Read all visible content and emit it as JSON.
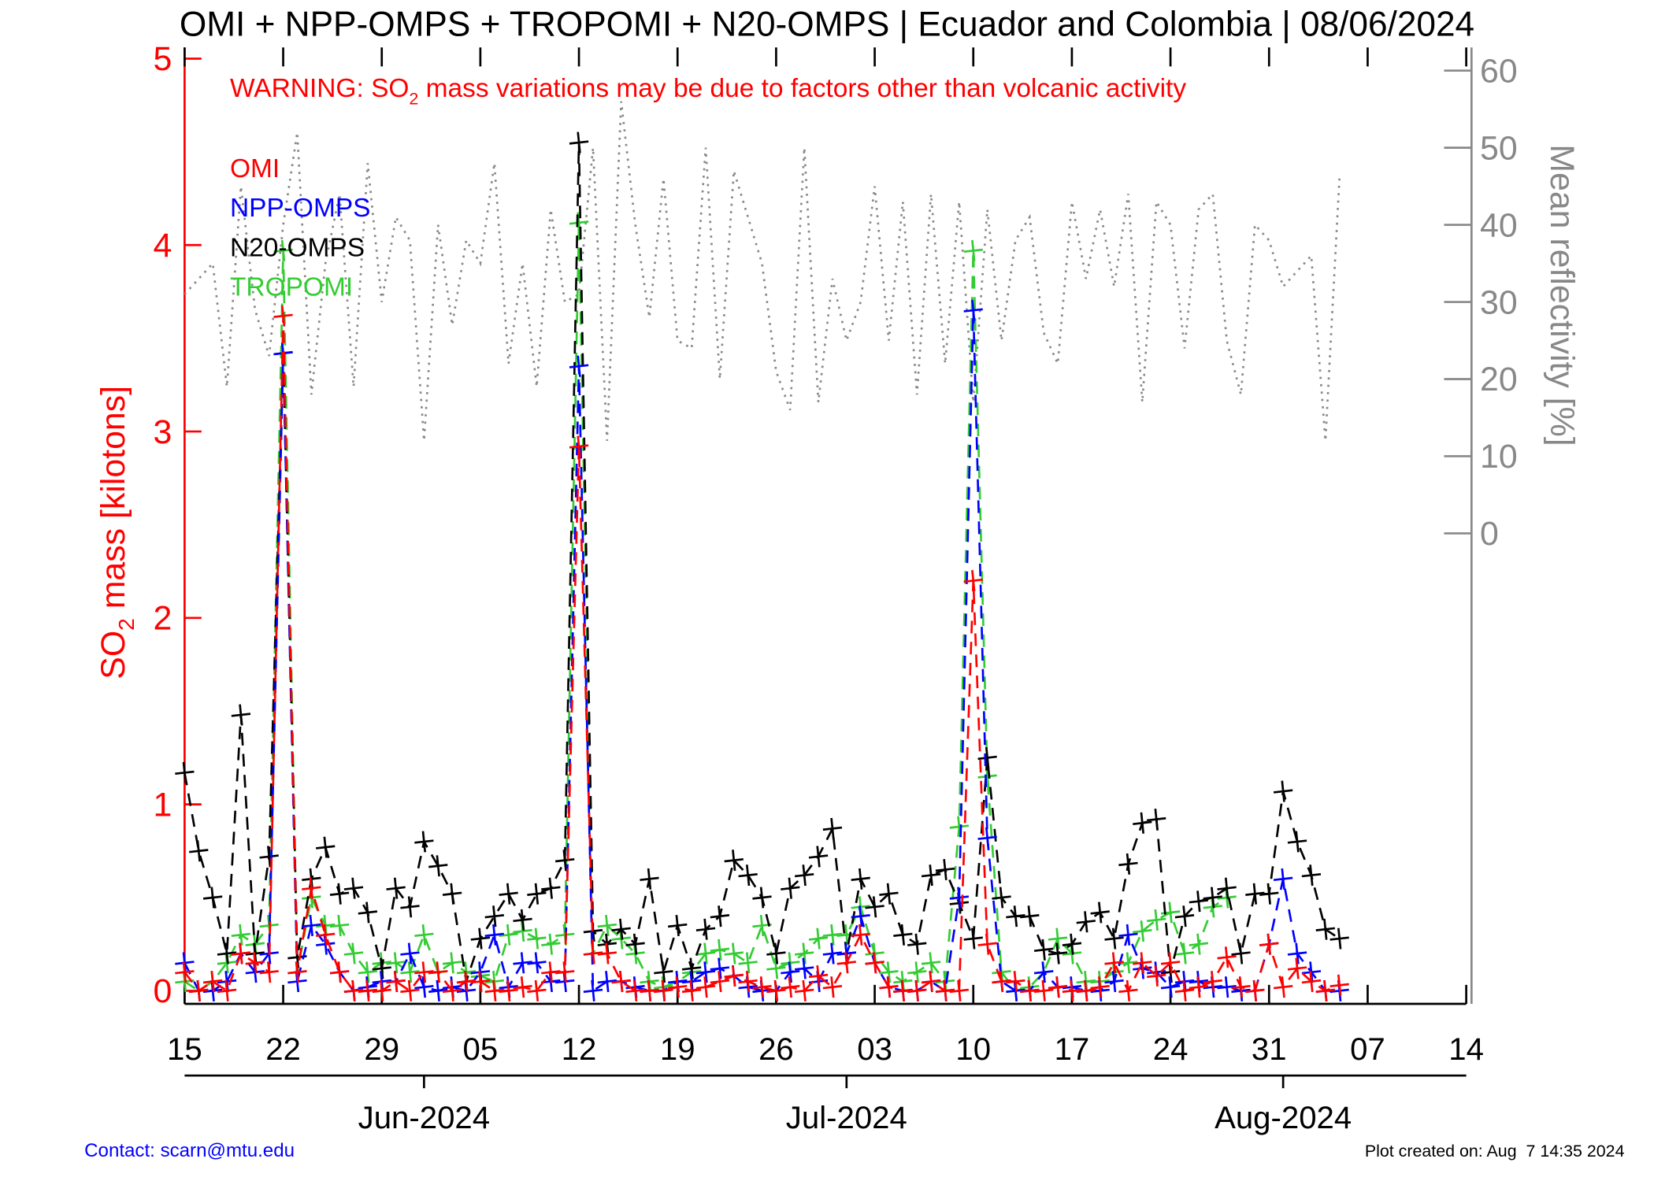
{
  "chart_data": {
    "type": "line",
    "title": "OMI + NPP-OMPS + TROPOMI + N20-OMPS | Ecuador and Colombia | 08/06/2024",
    "warning": {
      "prefix": "WARNING: SO",
      "sub": "2",
      "suffix": " mass variations may be due to factors other than volcanic activity"
    },
    "ylabel": {
      "prefix": "SO",
      "sub": "2",
      "suffix": " mass [kilotons]"
    },
    "y2label": "Mean reflectivity [%]",
    "x": [
      "2024-05-15",
      "2024-05-16",
      "2024-05-17",
      "2024-05-18",
      "2024-05-19",
      "2024-05-20",
      "2024-05-21",
      "2024-05-22",
      "2024-05-23",
      "2024-05-24",
      "2024-05-25",
      "2024-05-26",
      "2024-05-27",
      "2024-05-28",
      "2024-05-29",
      "2024-05-30",
      "2024-05-31",
      "2024-06-01",
      "2024-06-02",
      "2024-06-03",
      "2024-06-04",
      "2024-06-05",
      "2024-06-06",
      "2024-06-07",
      "2024-06-08",
      "2024-06-09",
      "2024-06-10",
      "2024-06-11",
      "2024-06-12",
      "2024-06-13",
      "2024-06-14",
      "2024-06-15",
      "2024-06-16",
      "2024-06-17",
      "2024-06-18",
      "2024-06-19",
      "2024-06-20",
      "2024-06-21",
      "2024-06-22",
      "2024-06-23",
      "2024-06-24",
      "2024-06-25",
      "2024-06-26",
      "2024-06-27",
      "2024-06-28",
      "2024-06-29",
      "2024-06-30",
      "2024-07-01",
      "2024-07-02",
      "2024-07-03",
      "2024-07-04",
      "2024-07-05",
      "2024-07-06",
      "2024-07-07",
      "2024-07-08",
      "2024-07-09",
      "2024-07-10",
      "2024-07-11",
      "2024-07-12",
      "2024-07-13",
      "2024-07-14",
      "2024-07-15",
      "2024-07-16",
      "2024-07-17",
      "2024-07-18",
      "2024-07-19",
      "2024-07-20",
      "2024-07-21",
      "2024-07-22",
      "2024-07-23",
      "2024-07-24",
      "2024-07-25",
      "2024-07-26",
      "2024-07-27",
      "2024-07-28",
      "2024-07-29",
      "2024-07-30",
      "2024-07-31",
      "2024-08-01",
      "2024-08-02",
      "2024-08-03",
      "2024-08-04",
      "2024-08-05"
    ],
    "series": [
      {
        "name": "OMI",
        "color": "#ff0000",
        "values": [
          0.1,
          0.0,
          0.05,
          0.0,
          0.2,
          0.15,
          0.1,
          3.62,
          0.1,
          0.55,
          0.3,
          0.1,
          0.0,
          0.0,
          0.0,
          0.05,
          0.0,
          0.1,
          0.1,
          0.0,
          0.05,
          0.05,
          0.0,
          0.0,
          0.02,
          0.0,
          0.1,
          0.1,
          2.92,
          0.2,
          0.2,
          0.05,
          0.0,
          0.0,
          0.0,
          0.02,
          0.0,
          0.02,
          0.05,
          0.08,
          0.05,
          0.02,
          0.0,
          0.02,
          0.0,
          0.08,
          0.02,
          0.15,
          0.3,
          0.15,
          0.02,
          0.0,
          0.0,
          0.05,
          0.0,
          0.0,
          2.2,
          0.25,
          0.05,
          0.05,
          0.0,
          0.0,
          0.02,
          0.0,
          0.0,
          0.02,
          0.15,
          0.0,
          0.15,
          0.08,
          0.15,
          0.0,
          0.02,
          0.05,
          0.18,
          0.02,
          0.0,
          0.25,
          0.02,
          0.12,
          0.05,
          0.0,
          0.03
        ]
      },
      {
        "name": "NPP-OMPS",
        "color": "#0000ff",
        "values": [
          0.15,
          0.0,
          0.0,
          0.05,
          0.2,
          0.1,
          0.2,
          3.42,
          0.05,
          0.35,
          0.25,
          0.1,
          0.0,
          0.02,
          0.05,
          0.05,
          0.2,
          0.02,
          0.0,
          0.02,
          0.0,
          0.1,
          0.3,
          0.02,
          0.15,
          0.15,
          0.05,
          0.05,
          3.35,
          0.0,
          0.05,
          0.05,
          0.02,
          0.0,
          0.0,
          0.05,
          0.05,
          0.1,
          0.12,
          0.08,
          0.02,
          0.0,
          0.0,
          0.1,
          0.12,
          0.05,
          0.2,
          0.2,
          0.4,
          0.15,
          0.02,
          0.0,
          0.0,
          0.05,
          0.0,
          0.5,
          3.65,
          0.82,
          0.05,
          0.0,
          0.0,
          0.1,
          0.02,
          0.02,
          0.0,
          0.0,
          0.05,
          0.3,
          0.12,
          0.1,
          0.02,
          0.05,
          0.05,
          0.02,
          0.02,
          0.0,
          0.0,
          0.25,
          0.6,
          0.2,
          0.1,
          0.0,
          0.0
        ]
      },
      {
        "name": "N20-OMPS",
        "color": "#000000",
        "values": [
          1.17,
          0.75,
          0.5,
          0.2,
          1.48,
          0.2,
          0.72,
          3.42,
          0.18,
          0.6,
          0.77,
          0.52,
          0.55,
          0.42,
          0.12,
          0.55,
          0.45,
          0.8,
          0.67,
          0.52,
          0.05,
          0.28,
          0.4,
          0.52,
          0.38,
          0.52,
          0.55,
          0.7,
          4.55,
          0.32,
          0.25,
          0.33,
          0.25,
          0.6,
          0.1,
          0.35,
          0.12,
          0.33,
          0.4,
          0.7,
          0.62,
          0.5,
          0.2,
          0.55,
          0.62,
          0.72,
          0.87,
          0.2,
          0.6,
          0.45,
          0.52,
          0.3,
          0.25,
          0.62,
          0.65,
          0.47,
          0.28,
          1.25,
          0.5,
          0.4,
          0.4,
          0.22,
          0.2,
          0.25,
          0.37,
          0.42,
          0.28,
          0.68,
          0.9,
          0.92,
          0.1,
          0.4,
          0.48,
          0.5,
          0.55,
          0.2,
          0.52,
          0.52,
          1.07,
          0.8,
          0.62,
          0.33,
          0.28
        ]
      },
      {
        "name": "TROPOMI",
        "color": "#33cc33",
        "values": [
          0.05,
          0.0,
          0.05,
          0.15,
          0.3,
          0.25,
          0.35,
          3.97,
          0.1,
          0.5,
          0.35,
          0.35,
          0.2,
          0.1,
          0.15,
          0.15,
          0.1,
          0.3,
          0.1,
          0.15,
          0.1,
          0.08,
          0.05,
          0.3,
          0.32,
          0.28,
          0.25,
          0.3,
          4.12,
          0.2,
          0.35,
          0.28,
          0.2,
          0.05,
          0.02,
          0.05,
          0.1,
          0.2,
          0.22,
          0.2,
          0.15,
          0.35,
          0.12,
          0.15,
          0.2,
          0.28,
          0.3,
          0.3,
          0.45,
          0.2,
          0.1,
          0.05,
          0.1,
          0.15,
          0.05,
          0.88,
          3.97,
          1.15,
          0.1,
          0.0,
          0.02,
          0.1,
          0.28,
          0.2,
          0.05,
          0.05,
          0.1,
          0.15,
          0.32,
          0.38,
          0.42,
          0.2,
          0.25,
          0.45,
          0.5,
          null,
          null,
          null,
          null,
          null,
          null,
          null,
          null
        ]
      },
      {
        "name": "Mean reflectivity",
        "color": "#888888",
        "axis": "y2",
        "values": [
          31,
          33,
          35,
          19,
          45,
          29,
          23,
          40,
          52,
          18,
          35,
          44,
          19,
          48,
          30,
          41,
          38,
          12,
          40,
          27,
          38,
          35,
          48,
          22,
          35,
          19,
          42,
          30,
          31,
          50,
          12,
          56,
          40,
          28,
          46,
          25,
          24,
          50,
          20,
          47,
          41,
          35,
          21,
          16,
          50,
          17,
          33,
          25,
          30,
          45,
          25,
          43,
          18,
          44,
          22,
          43,
          17,
          42,
          25,
          38,
          41,
          26,
          22,
          43,
          33,
          42,
          32,
          44,
          17,
          43,
          40,
          24,
          42,
          44,
          25,
          18,
          40,
          38,
          32,
          34,
          36,
          12,
          46
        ]
      }
    ],
    "xlim": [
      "2024-05-15",
      "2024-08-14"
    ],
    "xticks": [
      {
        "value": "2024-05-15",
        "label": "15"
      },
      {
        "value": "2024-05-22",
        "label": "22"
      },
      {
        "value": "2024-05-29",
        "label": "29"
      },
      {
        "value": "2024-06-05",
        "label": "05"
      },
      {
        "value": "2024-06-12",
        "label": "12"
      },
      {
        "value": "2024-06-19",
        "label": "19"
      },
      {
        "value": "2024-06-26",
        "label": "26"
      },
      {
        "value": "2024-07-03",
        "label": "03"
      },
      {
        "value": "2024-07-10",
        "label": "10"
      },
      {
        "value": "2024-07-17",
        "label": "17"
      },
      {
        "value": "2024-07-24",
        "label": "24"
      },
      {
        "value": "2024-07-31",
        "label": "31"
      },
      {
        "value": "2024-08-07",
        "label": "07"
      },
      {
        "value": "2024-08-14",
        "label": "14"
      }
    ],
    "month_ticks": [
      {
        "value": "2024-06-01",
        "label": "Jun-2024"
      },
      {
        "value": "2024-07-01",
        "label": "Jul-2024"
      },
      {
        "value": "2024-08-01",
        "label": "Aug-2024"
      }
    ],
    "ylim": [
      -0.07,
      5.06
    ],
    "yticks": [
      0,
      1,
      2,
      3,
      4,
      5
    ],
    "y2lim": [
      -61,
      63
    ],
    "y2ticks": [
      0,
      10,
      20,
      30,
      40,
      50,
      60
    ],
    "contact": "Contact: scarn@mtu.edu",
    "created": "Plot created on: Aug  7 14:35 2024"
  }
}
